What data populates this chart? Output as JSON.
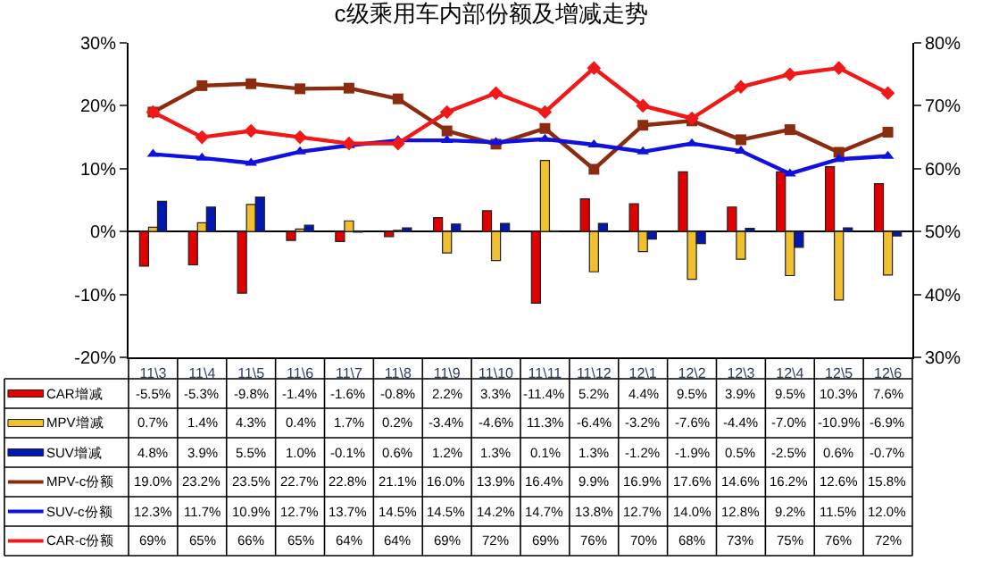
{
  "chart_data": {
    "type": "bar",
    "title": "c级乘用车内部份额及增减走势",
    "categories": [
      "11\\3",
      "11\\4",
      "11\\5",
      "11\\6",
      "11\\7",
      "11\\8",
      "11\\9",
      "11\\10",
      "11\\11",
      "11\\12",
      "12\\1",
      "12\\2",
      "12\\3",
      "12\\4",
      "12\\5",
      "12\\6"
    ],
    "ylim": [
      -20,
      30
    ],
    "yticks": [
      {
        "value": -20,
        "label": "-20%"
      },
      {
        "value": -10,
        "label": "-10%"
      },
      {
        "value": 0,
        "label": "0%"
      },
      {
        "value": 10,
        "label": "10%"
      },
      {
        "value": 20,
        "label": "20%"
      },
      {
        "value": 30,
        "label": "30%"
      }
    ],
    "y2lim": [
      30,
      80
    ],
    "y2ticks": [
      {
        "value": 30,
        "label": "30%"
      },
      {
        "value": 40,
        "label": "40%"
      },
      {
        "value": 50,
        "label": "50%"
      },
      {
        "value": 60,
        "label": "60%"
      },
      {
        "value": 70,
        "label": "70%"
      },
      {
        "value": 80,
        "label": "80%"
      }
    ],
    "legend": "bottom left",
    "series": [
      {
        "name": "CAR增减",
        "color": "#e00000",
        "values": [
          -5.5,
          -5.3,
          -9.8,
          -1.4,
          -1.6,
          -0.8,
          2.2,
          3.3,
          -11.4,
          5.2,
          4.4,
          9.5,
          3.9,
          9.5,
          10.3,
          7.6
        ],
        "value_labels": [
          "-5.5%",
          "-5.3%",
          "-9.8%",
          "-1.4%",
          "-1.6%",
          "-0.8%",
          "2.2%",
          "3.3%",
          "-11.4%",
          "5.2%",
          "4.4%",
          "9.5%",
          "3.9%",
          "9.5%",
          "10.3%",
          "7.6%"
        ]
      },
      {
        "name": "MPV增减",
        "color": "#f0c030",
        "values": [
          0.7,
          1.4,
          4.3,
          0.4,
          1.7,
          0.2,
          -3.4,
          -4.6,
          11.3,
          -6.4,
          -3.2,
          -7.6,
          -4.4,
          -7.0,
          -10.9,
          -6.9
        ],
        "value_labels": [
          "0.7%",
          "1.4%",
          "4.3%",
          "0.4%",
          "1.7%",
          "0.2%",
          "-3.4%",
          "-4.6%",
          "11.3%",
          "-6.4%",
          "-3.2%",
          "-7.6%",
          "-4.4%",
          "-7.0%",
          "-10.9%",
          "-6.9%"
        ]
      },
      {
        "name": "SUV增减",
        "color": "#0018b0",
        "values": [
          4.8,
          3.9,
          5.5,
          1.0,
          -0.1,
          0.6,
          1.2,
          1.3,
          0.1,
          1.3,
          -1.2,
          -1.9,
          0.5,
          -2.5,
          0.6,
          -0.7
        ],
        "value_labels": [
          "4.8%",
          "3.9%",
          "5.5%",
          "1.0%",
          "-0.1%",
          "0.6%",
          "1.2%",
          "1.3%",
          "0.1%",
          "1.3%",
          "-1.2%",
          "-1.9%",
          "0.5%",
          "-2.5%",
          "0.6%",
          "-0.7%"
        ]
      },
      {
        "name": "MPV-c份额",
        "type": "line",
        "color": "#8b2c10",
        "marker": "square",
        "values": [
          19.0,
          23.2,
          23.5,
          22.7,
          22.8,
          21.1,
          16.0,
          13.9,
          16.4,
          9.9,
          16.9,
          17.6,
          14.6,
          16.2,
          12.6,
          15.8
        ],
        "value_labels": [
          "19.0%",
          "23.2%",
          "23.5%",
          "22.7%",
          "22.8%",
          "21.1%",
          "16.0%",
          "13.9%",
          "16.4%",
          "9.9%",
          "16.9%",
          "17.6%",
          "14.6%",
          "16.2%",
          "12.6%",
          "15.8%"
        ]
      },
      {
        "name": "SUV-c份额",
        "type": "line",
        "color": "#1010e0",
        "marker": "triangle",
        "values": [
          12.3,
          11.7,
          10.9,
          12.7,
          13.7,
          14.5,
          14.5,
          14.2,
          14.7,
          13.8,
          12.7,
          14.0,
          12.8,
          9.2,
          11.5,
          12.0
        ],
        "value_labels": [
          "12.3%",
          "11.7%",
          "10.9%",
          "12.7%",
          "13.7%",
          "14.5%",
          "14.5%",
          "14.2%",
          "14.7%",
          "13.8%",
          "12.7%",
          "14.0%",
          "12.8%",
          "9.2%",
          "11.5%",
          "12.0%"
        ]
      },
      {
        "name": "CAR-c份额",
        "type": "line",
        "axis": "y2",
        "color": "#f01818",
        "marker": "diamond",
        "values": [
          69,
          65,
          66,
          65,
          64,
          64,
          69,
          72,
          69,
          76,
          70,
          68,
          73,
          75,
          76,
          72
        ],
        "value_labels": [
          "69%",
          "65%",
          "66%",
          "65%",
          "64%",
          "64%",
          "69%",
          "72%",
          "69%",
          "76%",
          "70%",
          "68%",
          "73%",
          "75%",
          "76%",
          "72%"
        ]
      }
    ]
  }
}
